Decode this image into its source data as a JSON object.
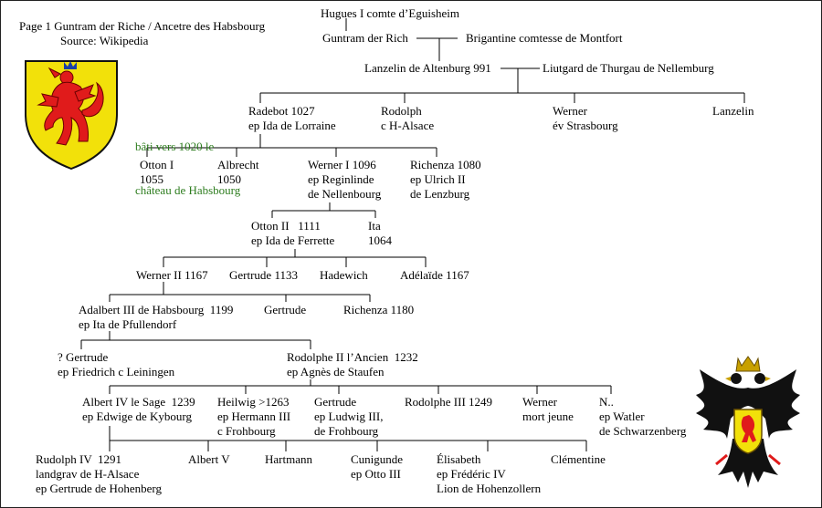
{
  "header": {
    "title": "Page 1 Guntram der Riche / Ancetre des Habsbourg",
    "source": "Source: Wikipedia"
  },
  "note": {
    "line1": "bâti vers 1020 le",
    "line2": "château de Habsbourg"
  },
  "colors": {
    "note_text": "#2e7d1f",
    "shield_fill": "#f2e10a",
    "lion": "#e01b1b",
    "eagle": "#111111"
  },
  "icons": [
    "habsburg-lion-shield-icon",
    "imperial-eagle-icon"
  ],
  "persons": {
    "hugues": [
      "Hugues I comte d’Eguisheim"
    ],
    "guntram": [
      "Guntram der Rich"
    ],
    "brigantine": [
      "Brigantine comtesse de Montfort"
    ],
    "lanzelin991": [
      "Lanzelin de Altenburg 991"
    ],
    "liutgard": [
      "Liutgard de Thurgau de Nellemburg"
    ],
    "radebot": [
      "Radebot 1027",
      "ep Ida de Lorraine"
    ],
    "rodolph": [
      "Rodolph",
      "c H-Alsace"
    ],
    "werner_strasbourg": [
      "Werner",
      "év Strasbourg"
    ],
    "lanzelin": [
      "Lanzelin"
    ],
    "otton1": [
      "Otton I",
      "1055"
    ],
    "albrecht": [
      "Albrecht",
      "1050"
    ],
    "werner1": [
      "Werner I 1096",
      "ep Reginlinde",
      "de Nellenbourg"
    ],
    "richenza1080": [
      "Richenza 1080",
      "ep Ulrich II",
      "de Lenzburg"
    ],
    "otton2": [
      "Otton II   1111",
      "ep Ida de Ferrette"
    ],
    "ita": [
      "Ita",
      "1064"
    ],
    "werner2": [
      "Werner II 1167"
    ],
    "gertrude1133": [
      "Gertrude 1133"
    ],
    "hadewich": [
      "Hadewich"
    ],
    "adelaide": [
      "Adélaïde 1167"
    ],
    "adalbert3": [
      "Adalbert III de Habsbourg  1199",
      "ep Ita de Pfullendorf"
    ],
    "gertrude_b": [
      "Gertrude"
    ],
    "richenza1180": [
      "Richenza 1180"
    ],
    "gertrude_q": [
      "? Gertrude",
      "ep Friedrich c Leiningen"
    ],
    "rodolphe2": [
      "Rodolphe II l’Ancien  1232",
      "ep Agnès de Staufen"
    ],
    "albert4": [
      "Albert IV le Sage  1239",
      "ep Edwige de Kybourg"
    ],
    "heilwig": [
      "Heilwig >1263",
      "ep Hermann III",
      "c Frohbourg"
    ],
    "gertrude_c": [
      "Gertrude",
      "ep Ludwig III,",
      "de Frohbourg"
    ],
    "rodolphe3": [
      "Rodolphe III 1249"
    ],
    "werner_mort": [
      "Werner",
      "mort jeune"
    ],
    "n_watler": [
      "N..",
      "ep Watler",
      "de Schwarzenberg"
    ],
    "rudolph4": [
      "Rudolph IV  1291",
      "landgrav de H-Alsace",
      "ep Gertrude de Hohenberg"
    ],
    "albert5": [
      "Albert V"
    ],
    "hartmann": [
      "Hartmann"
    ],
    "cunigunde": [
      "Cunigunde",
      "ep Otto III"
    ],
    "elisabeth": [
      "Élisabeth",
      "ep Frédéric IV",
      "Lion de Hohenzollern"
    ],
    "clementine": [
      "Clémentine"
    ]
  }
}
